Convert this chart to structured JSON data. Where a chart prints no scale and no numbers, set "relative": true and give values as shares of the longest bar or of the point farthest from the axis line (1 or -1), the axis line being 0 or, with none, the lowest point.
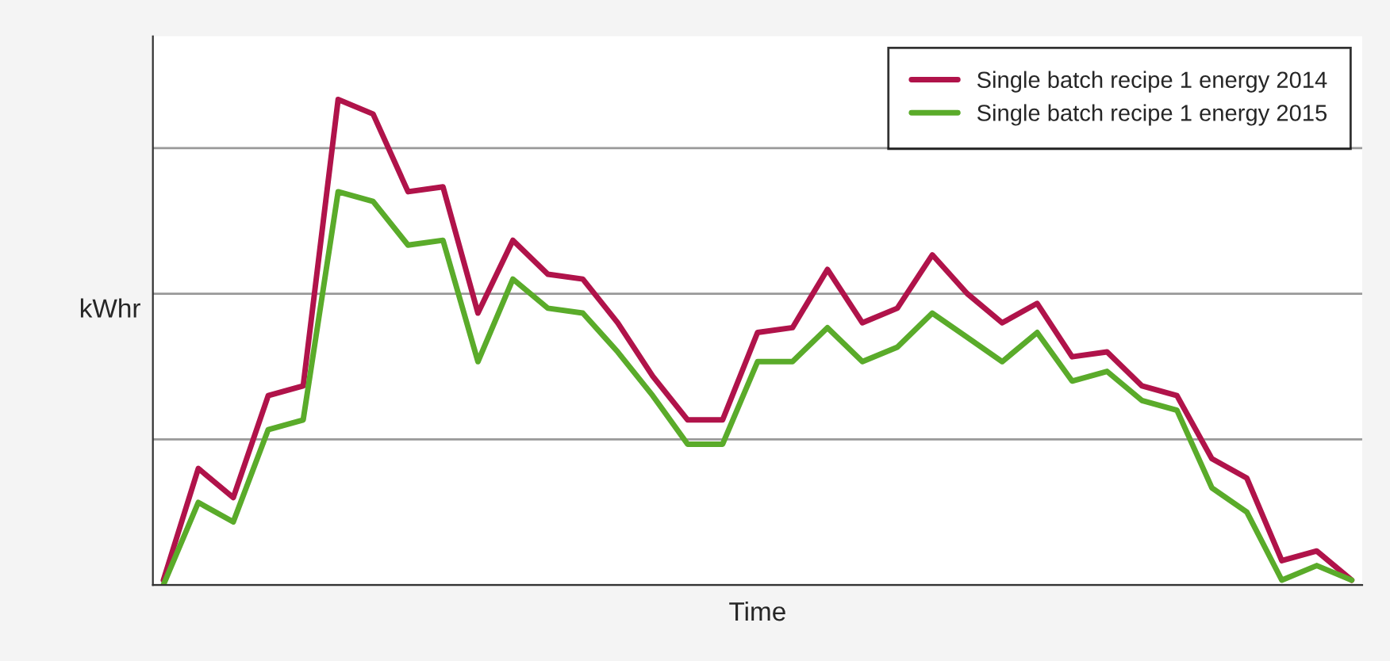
{
  "chart_data": {
    "type": "line",
    "relative": true,
    "xlabel": "Time",
    "ylabel": "kWhr",
    "grid": "y",
    "legend": "top right",
    "marker": "none",
    "line_style": "solid",
    "categories": [
      null,
      null,
      null,
      null,
      null,
      null,
      null,
      null,
      null,
      null,
      null,
      null,
      null,
      null,
      null,
      null,
      null,
      null,
      null,
      null,
      null,
      null,
      null,
      null,
      null,
      null,
      null,
      null,
      null,
      null,
      null,
      null,
      null,
      null,
      null
    ],
    "series": [
      {
        "name": "Single batch recipe 1 energy 2014",
        "color": "#b0134a",
        "values": [
          0.01,
          0.24,
          0.18,
          0.39,
          0.41,
          1,
          0.97,
          0.81,
          0.82,
          0.56,
          0.71,
          0.64,
          0.63,
          0.54,
          0.43,
          0.34,
          0.34,
          0.52,
          0.53,
          0.65,
          0.54,
          0.57,
          0.68,
          0.6,
          0.54,
          0.58,
          0.47,
          0.48,
          0.41,
          0.39,
          0.26,
          0.22,
          0.05,
          0.07,
          0.01
        ]
      },
      {
        "name": "Single batch recipe 1 energy 2015",
        "color": "#5aab2a",
        "values": [
          0,
          0.17,
          0.13,
          0.32,
          0.34,
          0.81,
          0.79,
          0.7,
          0.71,
          0.46,
          0.63,
          0.57,
          0.56,
          0.48,
          0.39,
          0.29,
          0.29,
          0.46,
          0.46,
          0.53,
          0.46,
          0.49,
          0.56,
          0.51,
          0.46,
          0.52,
          0.42,
          0.44,
          0.38,
          0.36,
          0.2,
          0.15,
          0.01,
          0.04,
          0.01
        ]
      }
    ]
  }
}
